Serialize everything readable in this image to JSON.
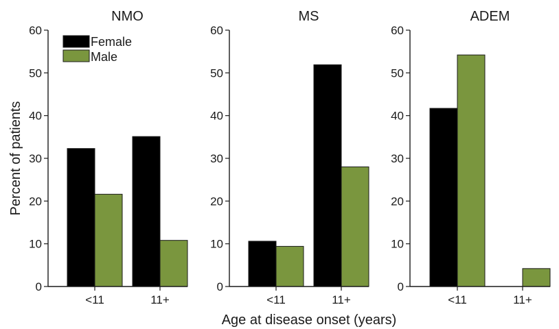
{
  "chart_data": {
    "type": "bar",
    "ylabel": "Percent of patients",
    "xlabel": "Age at disease onset (years)",
    "ylim": [
      0,
      60
    ],
    "yticks": [
      "0",
      "10",
      "20",
      "30",
      "40",
      "50",
      "60"
    ],
    "categories": [
      "<11",
      "11+"
    ],
    "legend": {
      "placement": "top-left",
      "entries": [
        "Female",
        "Male"
      ]
    },
    "colors": {
      "Female": "#000000",
      "Male": "#7a963e"
    },
    "grid": false,
    "panels": [
      {
        "title": "NMO",
        "series": [
          {
            "name": "Female",
            "values": [
              32.3,
              35.1
            ]
          },
          {
            "name": "Male",
            "values": [
              21.6,
              10.8
            ]
          }
        ]
      },
      {
        "title": "MS",
        "series": [
          {
            "name": "Female",
            "values": [
              10.6,
              51.9
            ]
          },
          {
            "name": "Male",
            "values": [
              9.4,
              28.0
            ]
          }
        ]
      },
      {
        "title": "ADEM",
        "series": [
          {
            "name": "Female",
            "values": [
              41.7,
              0
            ]
          },
          {
            "name": "Male",
            "values": [
              54.2,
              4.2
            ]
          }
        ]
      }
    ]
  }
}
